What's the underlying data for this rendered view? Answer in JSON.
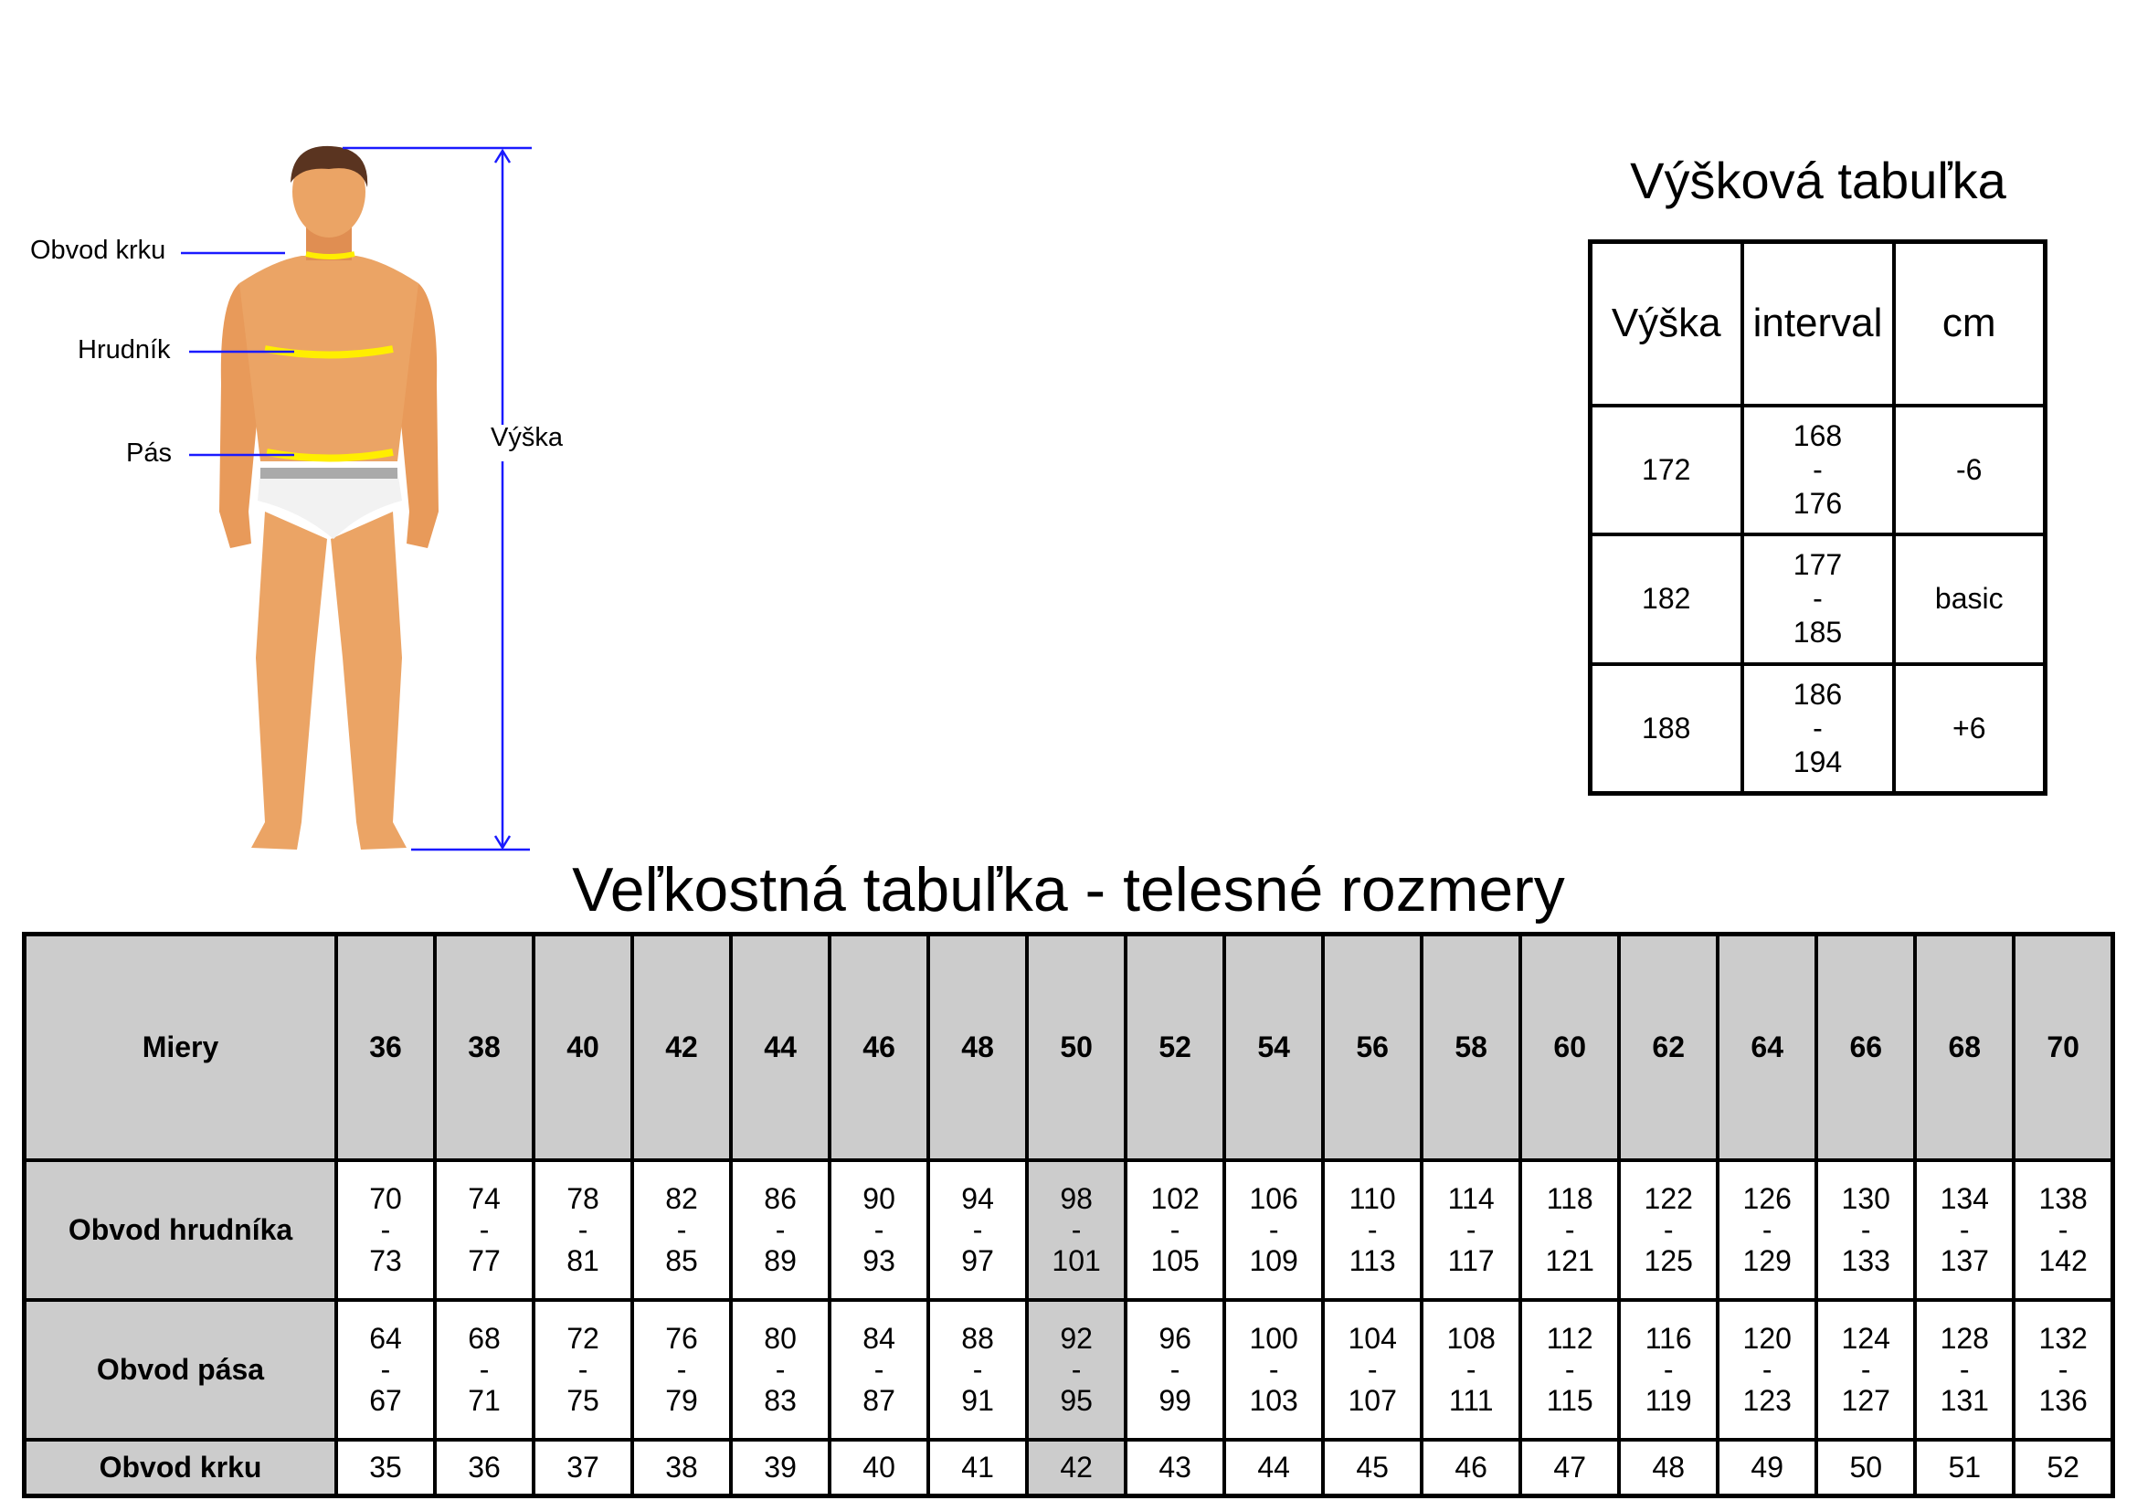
{
  "figure": {
    "labels": {
      "neck": "Obvod krku",
      "chest": "Hrudník",
      "waist": "Pás",
      "height": "Výška"
    },
    "line_color": "#1a1aff",
    "measure_color": "#ffee00"
  },
  "height_table": {
    "title": "Výšková tabuľka",
    "headers": [
      "Výška",
      "interval",
      "cm"
    ],
    "rows": [
      {
        "height": "172",
        "from": "168",
        "dash": "-",
        "to": "176",
        "cm": "-6"
      },
      {
        "height": "182",
        "from": "177",
        "dash": "-",
        "to": "185",
        "cm": "basic"
      },
      {
        "height": "188",
        "from": "186",
        "dash": "-",
        "to": "194",
        "cm": "+6"
      }
    ]
  },
  "size_table": {
    "title": "Veľkostná tabuľka - telesné rozmery",
    "header_label": "Miery",
    "highlight_size": "50",
    "sizes": [
      "36",
      "38",
      "40",
      "42",
      "44",
      "46",
      "48",
      "50",
      "52",
      "54",
      "56",
      "58",
      "60",
      "62",
      "64",
      "66",
      "68",
      "70"
    ],
    "rows": [
      {
        "label": "Obvod hrudníka",
        "ranges": [
          [
            "70",
            "73"
          ],
          [
            "74",
            "77"
          ],
          [
            "78",
            "81"
          ],
          [
            "82",
            "85"
          ],
          [
            "86",
            "89"
          ],
          [
            "90",
            "93"
          ],
          [
            "94",
            "97"
          ],
          [
            "98",
            "101"
          ],
          [
            "102",
            "105"
          ],
          [
            "106",
            "109"
          ],
          [
            "110",
            "113"
          ],
          [
            "114",
            "117"
          ],
          [
            "118",
            "121"
          ],
          [
            "122",
            "125"
          ],
          [
            "126",
            "129"
          ],
          [
            "130",
            "133"
          ],
          [
            "134",
            "137"
          ],
          [
            "138",
            "142"
          ]
        ]
      },
      {
        "label": "Obvod pása",
        "ranges": [
          [
            "64",
            "67"
          ],
          [
            "68",
            "71"
          ],
          [
            "72",
            "75"
          ],
          [
            "76",
            "79"
          ],
          [
            "80",
            "83"
          ],
          [
            "84",
            "87"
          ],
          [
            "88",
            "91"
          ],
          [
            "92",
            "95"
          ],
          [
            "96",
            "99"
          ],
          [
            "100",
            "103"
          ],
          [
            "104",
            "107"
          ],
          [
            "108",
            "111"
          ],
          [
            "112",
            "115"
          ],
          [
            "116",
            "119"
          ],
          [
            "120",
            "123"
          ],
          [
            "124",
            "127"
          ],
          [
            "128",
            "131"
          ],
          [
            "132",
            "136"
          ]
        ]
      },
      {
        "label": "Obvod krku",
        "values": [
          "35",
          "36",
          "37",
          "38",
          "39",
          "40",
          "41",
          "42",
          "43",
          "44",
          "45",
          "46",
          "47",
          "48",
          "49",
          "50",
          "51",
          "52"
        ]
      }
    ]
  }
}
